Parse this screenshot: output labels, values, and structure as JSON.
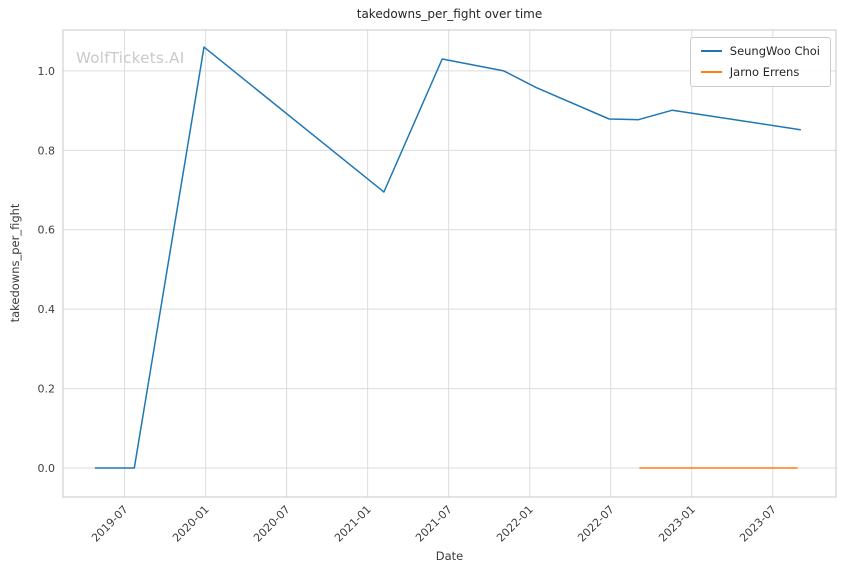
{
  "watermark": "WolfTickets.AI",
  "chart_data": {
    "type": "line",
    "title": "takedowns_per_fight over time",
    "xlabel": "Date",
    "ylabel": "takedowns_per_fight",
    "grid": true,
    "legend_position": "upper right",
    "x_tick_labels": [
      "2019-07",
      "2020-01",
      "2020-07",
      "2021-01",
      "2021-07",
      "2022-01",
      "2022-07",
      "2023-01",
      "2023-07"
    ],
    "y_ticks": [
      0.0,
      0.2,
      0.4,
      0.6,
      0.8,
      1.0
    ],
    "x_range_years": [
      2019.12,
      2023.89
    ],
    "y_range": [
      -0.073,
      1.103
    ],
    "series": [
      {
        "name": "SeungWoo Choi",
        "color": "#1f77b4",
        "points": [
          {
            "x": 2019.32,
            "y": 0.0
          },
          {
            "x": 2019.56,
            "y": 0.0
          },
          {
            "x": 2019.99,
            "y": 1.06
          },
          {
            "x": 2021.1,
            "y": 0.695
          },
          {
            "x": 2021.46,
            "y": 1.03
          },
          {
            "x": 2021.84,
            "y": 1.0
          },
          {
            "x": 2022.04,
            "y": 0.958
          },
          {
            "x": 2022.49,
            "y": 0.879
          },
          {
            "x": 2022.67,
            "y": 0.877
          },
          {
            "x": 2022.88,
            "y": 0.901
          },
          {
            "x": 2023.67,
            "y": 0.852
          }
        ]
      },
      {
        "name": "Jarno Errens",
        "color": "#ff7f0e",
        "points": [
          {
            "x": 2022.68,
            "y": 0.0
          },
          {
            "x": 2023.65,
            "y": 0.0
          }
        ]
      }
    ]
  }
}
